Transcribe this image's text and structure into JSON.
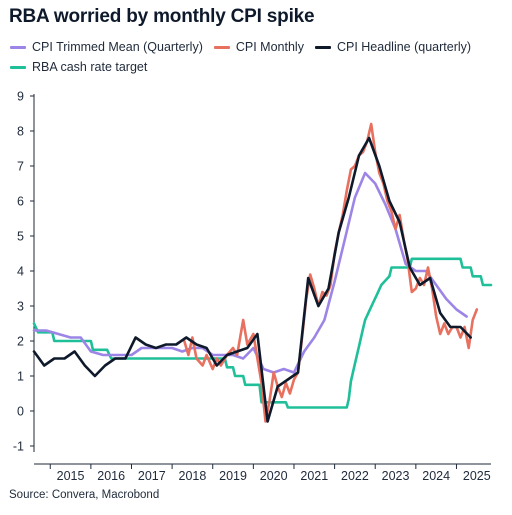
{
  "chart_data": {
    "type": "line",
    "title": "RBA worried by monthly CPI spike",
    "source": "Source: Convera, Macrobond",
    "ylim": [
      -1,
      9
    ],
    "yticks": [
      -1,
      0,
      1,
      2,
      3,
      4,
      5,
      6,
      7,
      8,
      9
    ],
    "xlim": [
      2014.6,
      2025.85
    ],
    "xticks": [
      "2015",
      "2016",
      "2017",
      "2018",
      "2019",
      "2020",
      "2021",
      "2022",
      "2023",
      "2024",
      "2025"
    ],
    "grid": false,
    "legend_position": "top",
    "series": [
      {
        "name": "CPI Trimmed Mean (Quarterly)",
        "color": "#9c85e6",
        "points": [
          [
            2014.6,
            2.3
          ],
          [
            2014.9,
            2.3
          ],
          [
            2015.2,
            2.2
          ],
          [
            2015.5,
            2.1
          ],
          [
            2015.75,
            2.1
          ],
          [
            2016.0,
            1.7
          ],
          [
            2016.3,
            1.6
          ],
          [
            2016.5,
            1.6
          ],
          [
            2016.75,
            1.6
          ],
          [
            2017.0,
            1.6
          ],
          [
            2017.25,
            1.8
          ],
          [
            2017.5,
            1.8
          ],
          [
            2017.75,
            1.8
          ],
          [
            2018.0,
            1.8
          ],
          [
            2018.25,
            1.7
          ],
          [
            2018.5,
            1.8
          ],
          [
            2018.75,
            1.8
          ],
          [
            2019.0,
            1.6
          ],
          [
            2019.25,
            1.6
          ],
          [
            2019.5,
            1.6
          ],
          [
            2019.75,
            1.5
          ],
          [
            2020.0,
            1.8
          ],
          [
            2020.25,
            1.2
          ],
          [
            2020.5,
            1.1
          ],
          [
            2020.75,
            1.2
          ],
          [
            2021.0,
            1.1
          ],
          [
            2021.25,
            1.7
          ],
          [
            2021.5,
            2.1
          ],
          [
            2021.75,
            2.6
          ],
          [
            2022.0,
            3.7
          ],
          [
            2022.25,
            4.9
          ],
          [
            2022.5,
            6.1
          ],
          [
            2022.75,
            6.8
          ],
          [
            2023.0,
            6.5
          ],
          [
            2023.25,
            5.9
          ],
          [
            2023.5,
            5.2
          ],
          [
            2023.75,
            4.2
          ],
          [
            2024.0,
            4.0
          ],
          [
            2024.25,
            4.0
          ],
          [
            2024.5,
            3.6
          ],
          [
            2024.75,
            3.2
          ],
          [
            2025.0,
            2.9
          ],
          [
            2025.25,
            2.7
          ]
        ]
      },
      {
        "name": "CPI Monthly",
        "color": "#e8705f",
        "points": [
          [
            2018.3,
            2.0
          ],
          [
            2018.4,
            1.6
          ],
          [
            2018.5,
            2.1
          ],
          [
            2018.6,
            1.5
          ],
          [
            2018.75,
            1.3
          ],
          [
            2018.85,
            1.6
          ],
          [
            2019.0,
            1.2
          ],
          [
            2019.1,
            1.5
          ],
          [
            2019.2,
            1.3
          ],
          [
            2019.35,
            1.6
          ],
          [
            2019.5,
            1.8
          ],
          [
            2019.6,
            1.6
          ],
          [
            2019.75,
            2.6
          ],
          [
            2019.85,
            1.9
          ],
          [
            2020.0,
            2.2
          ],
          [
            2020.1,
            1.5
          ],
          [
            2020.2,
            0.8
          ],
          [
            2020.3,
            -0.3
          ],
          [
            2020.4,
            0.3
          ],
          [
            2020.5,
            1.1
          ],
          [
            2020.6,
            0.7
          ],
          [
            2020.7,
            0.4
          ],
          [
            2020.8,
            0.8
          ],
          [
            2020.9,
            0.5
          ],
          [
            2021.0,
            0.9
          ],
          [
            2021.1,
            1.1
          ],
          [
            2021.2,
            2.1
          ],
          [
            2021.3,
            3.2
          ],
          [
            2021.4,
            3.9
          ],
          [
            2021.5,
            3.5
          ],
          [
            2021.6,
            3.0
          ],
          [
            2021.7,
            3.4
          ],
          [
            2021.8,
            3.3
          ],
          [
            2021.9,
            3.6
          ],
          [
            2022.0,
            4.5
          ],
          [
            2022.1,
            5.1
          ],
          [
            2022.2,
            5.6
          ],
          [
            2022.3,
            6.3
          ],
          [
            2022.4,
            6.9
          ],
          [
            2022.5,
            7.0
          ],
          [
            2022.6,
            7.3
          ],
          [
            2022.7,
            7.4
          ],
          [
            2022.8,
            7.7
          ],
          [
            2022.9,
            8.2
          ],
          [
            2023.0,
            7.4
          ],
          [
            2023.1,
            6.8
          ],
          [
            2023.2,
            6.5
          ],
          [
            2023.3,
            6.0
          ],
          [
            2023.4,
            5.7
          ],
          [
            2023.5,
            5.2
          ],
          [
            2023.6,
            5.6
          ],
          [
            2023.7,
            4.9
          ],
          [
            2023.8,
            4.3
          ],
          [
            2023.9,
            3.4
          ],
          [
            2024.0,
            3.5
          ],
          [
            2024.1,
            3.8
          ],
          [
            2024.2,
            3.6
          ],
          [
            2024.3,
            4.1
          ],
          [
            2024.4,
            3.5
          ],
          [
            2024.5,
            2.7
          ],
          [
            2024.6,
            2.2
          ],
          [
            2024.7,
            2.5
          ],
          [
            2024.8,
            2.2
          ],
          [
            2024.9,
            2.4
          ],
          [
            2025.0,
            2.4
          ],
          [
            2025.1,
            2.1
          ],
          [
            2025.2,
            2.4
          ],
          [
            2025.3,
            1.8
          ],
          [
            2025.4,
            2.6
          ],
          [
            2025.5,
            2.9
          ]
        ]
      },
      {
        "name": "CPI Headline (quarterly)",
        "color": "#0e1a2b",
        "points": [
          [
            2014.6,
            1.7
          ],
          [
            2014.85,
            1.3
          ],
          [
            2015.1,
            1.5
          ],
          [
            2015.35,
            1.5
          ],
          [
            2015.6,
            1.7
          ],
          [
            2015.85,
            1.3
          ],
          [
            2016.1,
            1.0
          ],
          [
            2016.35,
            1.3
          ],
          [
            2016.6,
            1.5
          ],
          [
            2016.85,
            1.5
          ],
          [
            2017.1,
            2.1
          ],
          [
            2017.35,
            1.9
          ],
          [
            2017.6,
            1.8
          ],
          [
            2017.85,
            1.9
          ],
          [
            2018.1,
            1.9
          ],
          [
            2018.35,
            2.1
          ],
          [
            2018.6,
            1.9
          ],
          [
            2018.85,
            1.8
          ],
          [
            2019.1,
            1.3
          ],
          [
            2019.35,
            1.6
          ],
          [
            2019.6,
            1.7
          ],
          [
            2019.85,
            1.8
          ],
          [
            2020.1,
            2.2
          ],
          [
            2020.35,
            -0.3
          ],
          [
            2020.6,
            0.7
          ],
          [
            2020.85,
            0.9
          ],
          [
            2021.1,
            1.1
          ],
          [
            2021.35,
            3.8
          ],
          [
            2021.6,
            3.0
          ],
          [
            2021.85,
            3.5
          ],
          [
            2022.1,
            5.1
          ],
          [
            2022.35,
            6.1
          ],
          [
            2022.6,
            7.3
          ],
          [
            2022.85,
            7.8
          ],
          [
            2023.1,
            7.0
          ],
          [
            2023.35,
            6.0
          ],
          [
            2023.6,
            5.4
          ],
          [
            2023.85,
            4.1
          ],
          [
            2024.1,
            3.6
          ],
          [
            2024.35,
            3.8
          ],
          [
            2024.6,
            2.8
          ],
          [
            2024.85,
            2.4
          ],
          [
            2025.1,
            2.4
          ],
          [
            2025.35,
            2.1
          ]
        ]
      },
      {
        "name": "RBA cash rate target",
        "color": "#1fbf9a",
        "points": [
          [
            2014.6,
            2.5
          ],
          [
            2014.7,
            2.25
          ],
          [
            2015.05,
            2.25
          ],
          [
            2015.1,
            2.0
          ],
          [
            2016.0,
            2.0
          ],
          [
            2016.05,
            1.75
          ],
          [
            2016.4,
            1.75
          ],
          [
            2016.5,
            1.5
          ],
          [
            2019.3,
            1.5
          ],
          [
            2019.35,
            1.25
          ],
          [
            2019.5,
            1.25
          ],
          [
            2019.55,
            1.0
          ],
          [
            2019.75,
            1.0
          ],
          [
            2019.8,
            0.75
          ],
          [
            2020.15,
            0.75
          ],
          [
            2020.2,
            0.25
          ],
          [
            2020.8,
            0.25
          ],
          [
            2020.85,
            0.1
          ],
          [
            2022.3,
            0.1
          ],
          [
            2022.35,
            0.35
          ],
          [
            2022.4,
            0.85
          ],
          [
            2022.5,
            1.35
          ],
          [
            2022.6,
            1.85
          ],
          [
            2022.7,
            2.35
          ],
          [
            2022.75,
            2.6
          ],
          [
            2022.85,
            2.85
          ],
          [
            2022.95,
            3.1
          ],
          [
            2023.05,
            3.35
          ],
          [
            2023.15,
            3.6
          ],
          [
            2023.35,
            3.85
          ],
          [
            2023.4,
            4.1
          ],
          [
            2023.85,
            4.1
          ],
          [
            2023.9,
            4.35
          ],
          [
            2025.1,
            4.35
          ],
          [
            2025.15,
            4.1
          ],
          [
            2025.35,
            4.1
          ],
          [
            2025.4,
            3.85
          ],
          [
            2025.6,
            3.85
          ],
          [
            2025.65,
            3.6
          ],
          [
            2025.85,
            3.6
          ]
        ]
      }
    ]
  }
}
